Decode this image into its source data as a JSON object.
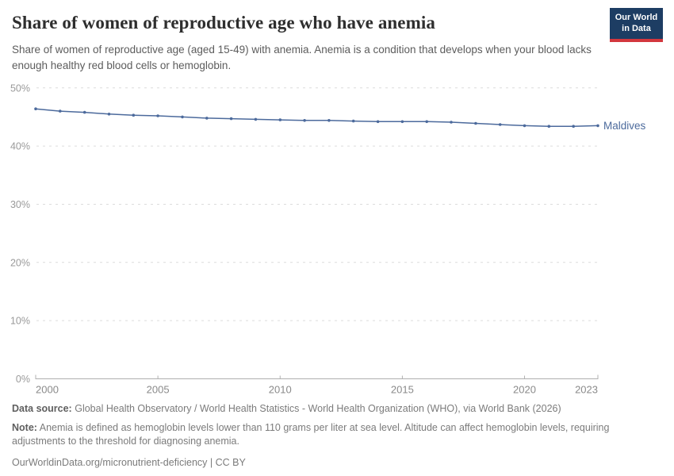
{
  "header": {
    "title": "Share of women of reproductive age who have anemia",
    "subtitle": "Share of women of reproductive age (aged 15-49) with anemia. Anemia is a condition that develops when your blood lacks enough healthy red blood cells or hemoglobin.",
    "logo": {
      "line1": "Our World",
      "line2": "in Data",
      "bg_color": "#1d3d63",
      "accent_color": "#d3373e"
    }
  },
  "chart_data": {
    "type": "line",
    "title": "Share of women of reproductive age who have anemia",
    "xlabel": "",
    "ylabel": "",
    "xlim": [
      2000,
      2023
    ],
    "ylim": [
      0,
      50
    ],
    "x_ticks": [
      2000,
      2005,
      2010,
      2015,
      2020,
      2023
    ],
    "y_ticks": [
      0,
      10,
      20,
      30,
      40,
      50
    ],
    "y_tick_suffix": "%",
    "grid": "horizontal-dashed",
    "legend_position": "end-of-line-label",
    "series": [
      {
        "name": "Maldives",
        "color": "#4c6a9c",
        "x": [
          2000,
          2001,
          2002,
          2003,
          2004,
          2005,
          2006,
          2007,
          2008,
          2009,
          2010,
          2011,
          2012,
          2013,
          2014,
          2015,
          2016,
          2017,
          2018,
          2019,
          2020,
          2021,
          2022,
          2023
        ],
        "values": [
          46.4,
          46.0,
          45.8,
          45.5,
          45.3,
          45.2,
          45.0,
          44.8,
          44.7,
          44.6,
          44.5,
          44.4,
          44.4,
          44.3,
          44.2,
          44.2,
          44.2,
          44.1,
          43.9,
          43.7,
          43.5,
          43.4,
          43.4,
          43.5
        ]
      }
    ],
    "colors": {
      "grid": "#dcdcdc",
      "axis": "#b0b0b0",
      "y_tick_label": "#9a9a9a",
      "x_tick_label": "#8a8a8a"
    }
  },
  "footer": {
    "data_source_label": "Data source:",
    "data_source_text": "Global Health Observatory / World Health Statistics - World Health Organization (WHO), via World Bank (2026)",
    "note_label": "Note:",
    "note_text": "Anemia is defined as hemoglobin levels lower than 110 grams per liter at sea level. Altitude can affect hemoglobin levels, requiring adjustments to the threshold for diagnosing anemia.",
    "citation": "OurWorldinData.org/micronutrient-deficiency | CC BY"
  }
}
